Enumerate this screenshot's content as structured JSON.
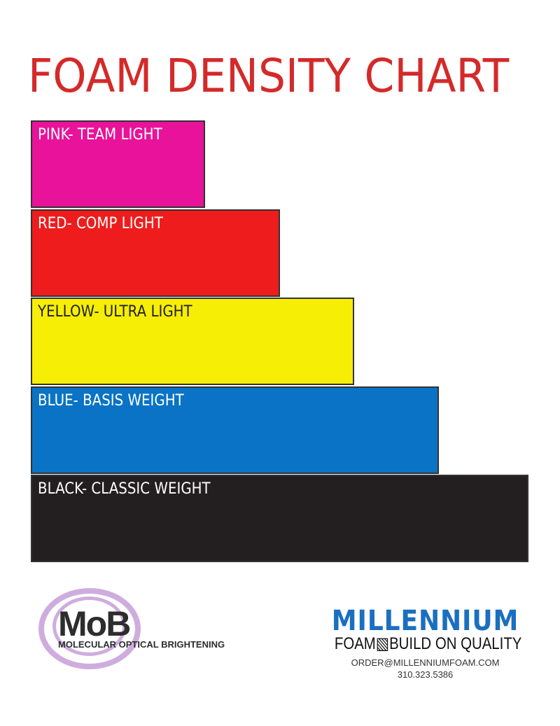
{
  "chart_data": {
    "type": "bar",
    "orientation": "horizontal",
    "title": "FOAM DENSITY CHART",
    "categories": [
      "PINK- TEAM LIGHT",
      "RED- COMP LIGHT",
      "YELLOW- ULTRA LIGHT",
      "BLUE- BASIS WEIGHT",
      "BLACK- CLASSIC WEIGHT"
    ],
    "values": [
      0.35,
      0.5,
      0.65,
      0.82,
      1.0
    ],
    "colors": [
      "#e8139a",
      "#ee1c1c",
      "#f6ee05",
      "#0a73c5",
      "#231f20"
    ],
    "label_colors": [
      "#ffffff",
      "#ffffff",
      "#222222",
      "#ffffff",
      "#ffffff"
    ],
    "grid": false
  },
  "logos": {
    "mob": {
      "letters": "MoB",
      "subtitle": "MOLECULAR OPTICAL BRIGHTENING"
    },
    "millennium": {
      "name": "MILLENNIUM",
      "tagline": "FOAM▧BUILD ON QUALITY",
      "email": "ORDER@MILLENNIUMFOAM.COM",
      "phone": "310.323.5386"
    }
  }
}
